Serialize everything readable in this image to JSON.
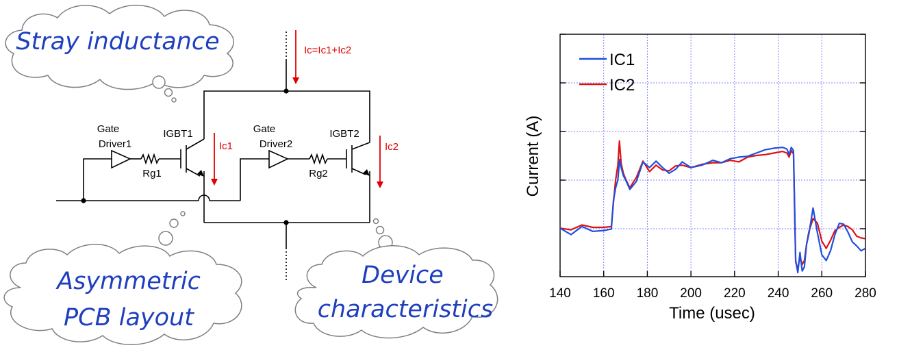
{
  "clouds": {
    "stray": "Stray inductance",
    "asym_line1": "Asymmetric",
    "asym_line2": "PCB layout",
    "device_line1": "Device",
    "device_line2": "characteristics"
  },
  "circuit": {
    "gate_driver1_l1": "Gate",
    "gate_driver1_l2": "Driver1",
    "gate_driver2_l1": "Gate",
    "gate_driver2_l2": "Driver2",
    "igbt1": "IGBT1",
    "igbt2": "IGBT2",
    "rg1": "Rg1",
    "rg2": "Rg2",
    "ic": "Ic=Ic1+Ic2",
    "ic1": "Ic1",
    "ic2": "Ic2"
  },
  "colors": {
    "cloud_text": "#1f3fbf",
    "arrow": "#e00000",
    "ic1": "#1f4fe0",
    "ic2": "#e01010",
    "grid": "#8080ff"
  },
  "chart_data": {
    "type": "line",
    "xlabel": "Time (usec)",
    "ylabel": "Current (A)",
    "xlim": [
      140,
      280
    ],
    "xticks": [
      "140",
      "160",
      "180",
      "200",
      "220",
      "240",
      "260",
      "280"
    ],
    "grid": true,
    "legend_position": "top-left",
    "series": [
      {
        "name": "IC1",
        "color": "#1f4fe0",
        "x": [
          140,
          145,
          150,
          155,
          160,
          163.5,
          164.5,
          165.5,
          166.5,
          167.3,
          168,
          169,
          170,
          172,
          175,
          178,
          181,
          184,
          187,
          190,
          193,
          196,
          200,
          205,
          210,
          214,
          218,
          222,
          226,
          230,
          234,
          238,
          242,
          244,
          245,
          246,
          247,
          248,
          249,
          250,
          251,
          252,
          253,
          254,
          256,
          258,
          260,
          262,
          264,
          266,
          268,
          270,
          272,
          274,
          276,
          278,
          280
        ],
        "y": [
          0,
          -0.8,
          0.2,
          -0.4,
          -0.3,
          -0.1,
          3.5,
          5,
          6,
          8.5,
          7.5,
          6.5,
          6,
          4.8,
          5.8,
          8.2,
          7.5,
          8.3,
          7.5,
          6.8,
          7.3,
          8.2,
          7.5,
          7.8,
          8.4,
          8.1,
          8.6,
          8.8,
          8.9,
          9.3,
          9.7,
          9.9,
          10,
          9.8,
          9.1,
          10,
          9.6,
          -4,
          -5.5,
          -3,
          -5.3,
          -4.8,
          -2,
          -0.8,
          2.5,
          -0.6,
          -3.3,
          -4,
          -2.8,
          -0.8,
          0.6,
          0.5,
          -0.5,
          -1.7,
          -2.2,
          -2.8,
          -2.5
        ]
      },
      {
        "name": "IC2",
        "color": "#e01010",
        "x": [
          140,
          145,
          150,
          155,
          160,
          163.5,
          164.5,
          165.5,
          166.5,
          167.2,
          168,
          169,
          170,
          172,
          175,
          178,
          181,
          184,
          187,
          190,
          193,
          196,
          200,
          205,
          210,
          214,
          218,
          222,
          226,
          230,
          234,
          238,
          242,
          244,
          245,
          246,
          247,
          248,
          249,
          250,
          251,
          252,
          253,
          254,
          256,
          258,
          260,
          262,
          264,
          266,
          268,
          270,
          272,
          274,
          276,
          278,
          280
        ],
        "y": [
          0,
          -0.2,
          0.4,
          0.1,
          0.1,
          0.2,
          3.2,
          6,
          7.8,
          10.8,
          8,
          6.8,
          6.1,
          5,
          6.3,
          8.3,
          7,
          7.8,
          7.2,
          7.1,
          7.7,
          7.8,
          7.5,
          7.9,
          8.1,
          8.1,
          8.4,
          8.2,
          8.8,
          9,
          9.1,
          9.3,
          9.5,
          9.3,
          8.8,
          9.6,
          9.2,
          -4.2,
          -5,
          -3.6,
          -4.5,
          -4,
          -2,
          -0.5,
          1.2,
          0.6,
          -1.6,
          -2.5,
          -1.5,
          -0.3,
          0.1,
          0.4,
          0.2,
          -0.2,
          -1,
          -1.2,
          -1.3
        ]
      }
    ]
  }
}
